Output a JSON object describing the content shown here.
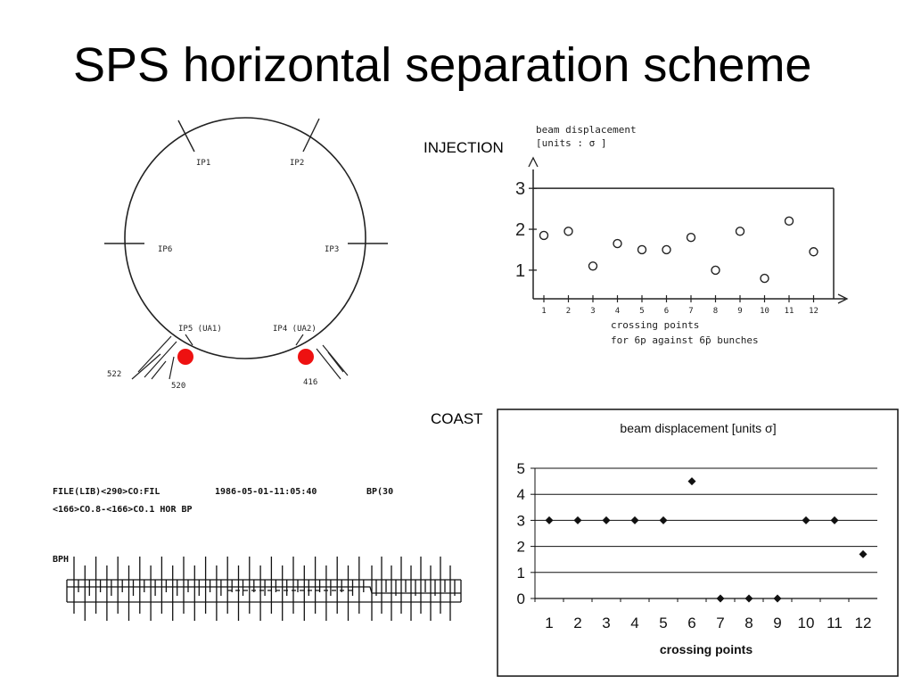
{
  "slide": {
    "title": "SPS horizontal separation scheme",
    "injection_label": "INJECTION",
    "coast_label": "COAST"
  },
  "ring_diagram": {
    "ip_labels": [
      "IP1",
      "IP2",
      "IP3",
      "IP4 (UA2)",
      "IP5 (UA1)",
      "IP6"
    ],
    "separator_labels": [
      "522",
      "520",
      "416"
    ],
    "marker_color": "#ee1111"
  },
  "scope_trace": {
    "header_line1_left": "FILE(LIB)<290>CO:FIL",
    "header_line1_right": "1986-05-01-11:05:40",
    "header_line1_tag": "BP(30",
    "header_line2": "<166>CO.8-<166>CO.1 HOR  BP",
    "channel_label": "BPH"
  },
  "chart_data": [
    {
      "id": "injection",
      "type": "scatter",
      "title": "beam displacement\n[units : σ]",
      "title_lines": [
        "beam displacement",
        "[units : σ ]"
      ],
      "xlabel_lines": [
        "crossing points",
        "for 6p against 6p̄ bunches"
      ],
      "ylim": [
        0.3,
        3.2
      ],
      "y_ticks": [
        1,
        2,
        3
      ],
      "x": [
        1,
        2,
        3,
        4,
        5,
        6,
        7,
        8,
        9,
        10,
        11,
        12
      ],
      "values": [
        1.85,
        1.95,
        1.1,
        1.65,
        1.5,
        1.5,
        1.8,
        1.0,
        1.95,
        0.8,
        2.2,
        1.45
      ],
      "marker": "open-circle"
    },
    {
      "id": "coast",
      "type": "scatter",
      "title": "beam displacement [units σ]",
      "xlabel": "crossing points",
      "ylim": [
        0,
        5
      ],
      "y_ticks": [
        0,
        1,
        2,
        3,
        4,
        5
      ],
      "x": [
        1,
        2,
        3,
        4,
        5,
        6,
        7,
        8,
        9,
        10,
        11,
        12
      ],
      "values": [
        3,
        3,
        3,
        3,
        3,
        4.5,
        0,
        0,
        0,
        3,
        3,
        1.7
      ],
      "marker": "filled-diamond",
      "grid": true
    }
  ]
}
